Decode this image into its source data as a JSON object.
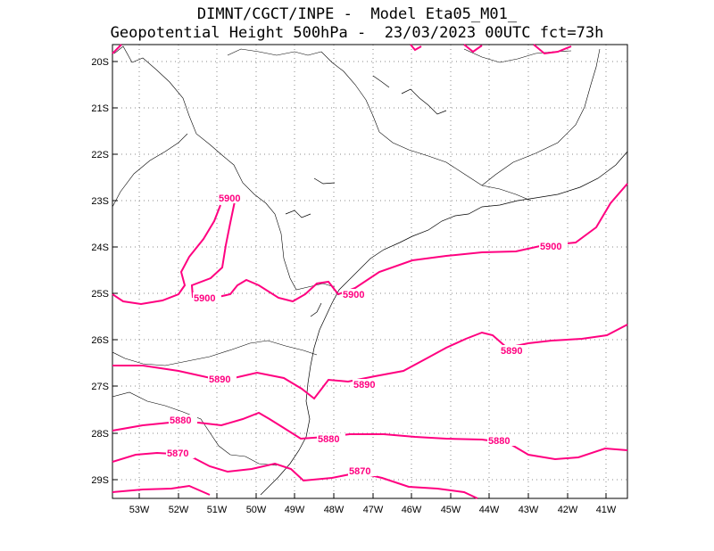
{
  "title": {
    "line1": "DIMNT/CGCT/INPE -  Model Eta05_M01_",
    "line2": "Geopotential Height 500hPa -  23/03/2023 00UTC fct=73h"
  },
  "map": {
    "lat_labels": [
      "20S",
      "21S",
      "22S",
      "23S",
      "24S",
      "25S",
      "26S",
      "27S",
      "28S",
      "29S"
    ],
    "lon_labels": [
      "53W",
      "52W",
      "51W",
      "50W",
      "49W",
      "48W",
      "47W",
      "46W",
      "45W",
      "44W",
      "43W",
      "42W",
      "41W"
    ],
    "contour_color": "#ff0080",
    "contour_labels": [
      "5900",
      "5900",
      "5900",
      "5900",
      "5890",
      "5890",
      "5890",
      "5880",
      "5880",
      "5880",
      "5870",
      "5870"
    ]
  }
}
